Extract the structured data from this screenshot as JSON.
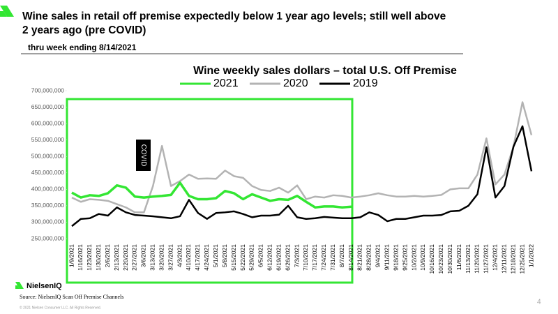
{
  "header": {
    "title": "Wine sales in retail off premise expectedly below 1 year ago levels;  still well above 2 years ago (pre COVID)",
    "subtitle": "thru week ending 8/14/2021"
  },
  "chart_data": {
    "type": "line",
    "title": "Wine weekly sales dollars – total U.S. Off Premise",
    "annotation": "COVID",
    "categories": [
      "1/9/2021",
      "1/16/2021",
      "1/23/2021",
      "1/30/2021",
      "2/6/2021",
      "2/13/2021",
      "2/20/2021",
      "2/27/2021",
      "3/6/2021",
      "3/13/2021",
      "3/20/2021",
      "3/27/2021",
      "4/3/2021",
      "4/10/2021",
      "4/17/2021",
      "4/24/2021",
      "5/1/2021",
      "5/8/2021",
      "5/15/2021",
      "5/22/2021",
      "5/29/2021",
      "6/5/2021",
      "6/12/2021",
      "6/19/2021",
      "6/26/2021",
      "7/3/2021",
      "7/10/2021",
      "7/17/2021",
      "7/24/2021",
      "7/31/2021",
      "8/7/2021",
      "8/14/2021",
      "8/21/2021",
      "8/28/2021",
      "9/4/2021",
      "9/11/2021",
      "9/18/2021",
      "9/25/2021",
      "10/2/2021",
      "10/9/2021",
      "10/16/2021",
      "10/23/2021",
      "10/30/2021",
      "11/6/2021",
      "11/13/2021",
      "11/20/2021",
      "11/27/2021",
      "12/4/2021",
      "12/11/2021",
      "12/18/2021",
      "12/25/2021",
      "1/1/2022"
    ],
    "series": [
      {
        "name": "2021",
        "color": "#33e633",
        "width": 3.5,
        "values": [
          390000000,
          375000000,
          382000000,
          380000000,
          388000000,
          412000000,
          405000000,
          378000000,
          375000000,
          378000000,
          380000000,
          383000000,
          420000000,
          380000000,
          370000000,
          370000000,
          373000000,
          395000000,
          388000000,
          370000000,
          385000000,
          375000000,
          365000000,
          370000000,
          368000000,
          380000000,
          362000000,
          345000000,
          348000000,
          348000000,
          345000000,
          347000000,
          null,
          null,
          null,
          null,
          null,
          null,
          null,
          null,
          null,
          null,
          null,
          null,
          null,
          null,
          null,
          null,
          null,
          null,
          null,
          null
        ]
      },
      {
        "name": "2020",
        "color": "#b3b3b3",
        "width": 2.5,
        "values": [
          375000000,
          362000000,
          370000000,
          368000000,
          365000000,
          355000000,
          345000000,
          330000000,
          330000000,
          410000000,
          532000000,
          410000000,
          425000000,
          445000000,
          432000000,
          433000000,
          432000000,
          457000000,
          440000000,
          435000000,
          410000000,
          398000000,
          395000000,
          405000000,
          390000000,
          412000000,
          370000000,
          378000000,
          375000000,
          382000000,
          380000000,
          375000000,
          378000000,
          382000000,
          388000000,
          382000000,
          378000000,
          378000000,
          380000000,
          378000000,
          380000000,
          383000000,
          400000000,
          403000000,
          403000000,
          445000000,
          555000000,
          415000000,
          445000000,
          530000000,
          665000000,
          565000000
        ]
      },
      {
        "name": "2019",
        "color": "#000000",
        "width": 2.5,
        "values": [
          288000000,
          310000000,
          312000000,
          325000000,
          320000000,
          345000000,
          330000000,
          322000000,
          320000000,
          318000000,
          315000000,
          312000000,
          318000000,
          368000000,
          328000000,
          310000000,
          328000000,
          330000000,
          333000000,
          325000000,
          315000000,
          320000000,
          320000000,
          323000000,
          350000000,
          315000000,
          310000000,
          312000000,
          316000000,
          314000000,
          312000000,
          312000000,
          315000000,
          330000000,
          322000000,
          303000000,
          310000000,
          310000000,
          315000000,
          320000000,
          320000000,
          322000000,
          333000000,
          335000000,
          350000000,
          385000000,
          528000000,
          375000000,
          410000000,
          530000000,
          592000000,
          455000000
        ]
      }
    ],
    "ylim": [
      250000000,
      700000000
    ],
    "yticks": [
      {
        "value": 250000000,
        "label": "250,000,000"
      },
      {
        "value": 300000000,
        "label": "300,000,000"
      },
      {
        "value": 350000000,
        "label": "350,000,000"
      },
      {
        "value": 400000000,
        "label": "400,000,000"
      },
      {
        "value": 450000000,
        "label": "450,000,000"
      },
      {
        "value": 500000000,
        "label": "500,000,000"
      },
      {
        "value": 550000000,
        "label": "550,000,000"
      },
      {
        "value": 600000000,
        "label": "600,000,000"
      },
      {
        "value": 650000000,
        "label": "650,000,000"
      },
      {
        "value": 700000000,
        "label": "700,000,000"
      }
    ],
    "grid": false,
    "legend": "top"
  },
  "footer": {
    "logo": "NielsenIQ",
    "source": "Source: NielsenIQ  Scan Off Premise Channels",
    "copyright": "© 2021 Nielsen Consumer LLC. All Rights Reserved.",
    "page": "4"
  }
}
